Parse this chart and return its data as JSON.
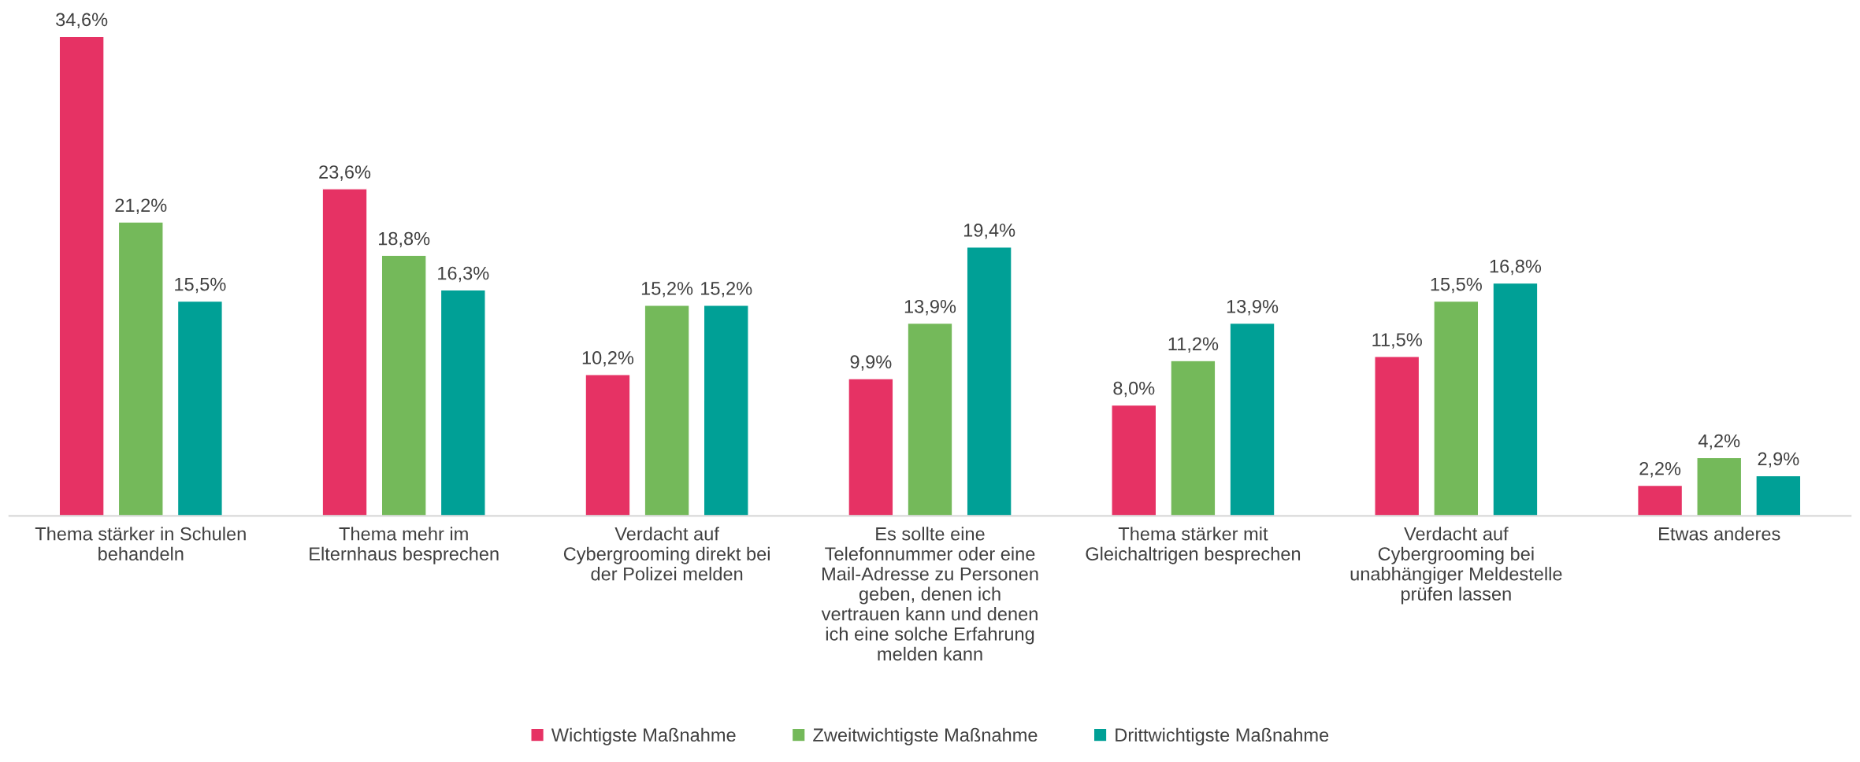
{
  "chart_data": {
    "type": "bar",
    "categories": [
      "Thema stärker in Schulen\nbehandeln",
      "Thema mehr im\nElternhaus besprechen",
      "Verdacht auf\nCybergrooming direkt bei\nder Polizei melden",
      "Es sollte eine\nTelefonnummer oder eine\nMail-Adresse zu Personen\ngeben, denen ich\nvertrauen kann und denen\nich eine solche Erfahrung\nmelden kann",
      "Thema stärker mit\nGleichaltrigen besprechen",
      "Verdacht auf\nCybergrooming bei\nunabhängiger Meldestelle\nprüfen lassen",
      "Etwas anderes"
    ],
    "series": [
      {
        "name": "Wichtigste Maßnahme",
        "color": "#e63264",
        "values": [
          34.6,
          23.6,
          10.2,
          9.9,
          8.0,
          11.5,
          2.2
        ],
        "value_labels": [
          "34,6%",
          "23,6%",
          "10,2%",
          "9,9%",
          "8,0%",
          "11,5%",
          "2,2%"
        ]
      },
      {
        "name": "Zweitwichtigste Maßnahme",
        "color": "#74b95a",
        "values": [
          21.2,
          18.8,
          15.2,
          13.9,
          11.2,
          15.5,
          4.2
        ],
        "value_labels": [
          "21,2%",
          "18,8%",
          "15,2%",
          "13,9%",
          "11,2%",
          "15,5%",
          "4,2%"
        ]
      },
      {
        "name": "Drittwichtigste Maßnahme",
        "color": "#00a096",
        "values": [
          15.5,
          16.3,
          15.2,
          19.4,
          13.9,
          16.8,
          2.9
        ],
        "value_labels": [
          "15,5%",
          "16,3%",
          "15,2%",
          "19,4%",
          "13,9%",
          "16,8%",
          "2,9%"
        ]
      }
    ],
    "legend": "bottom",
    "grid": false
  }
}
